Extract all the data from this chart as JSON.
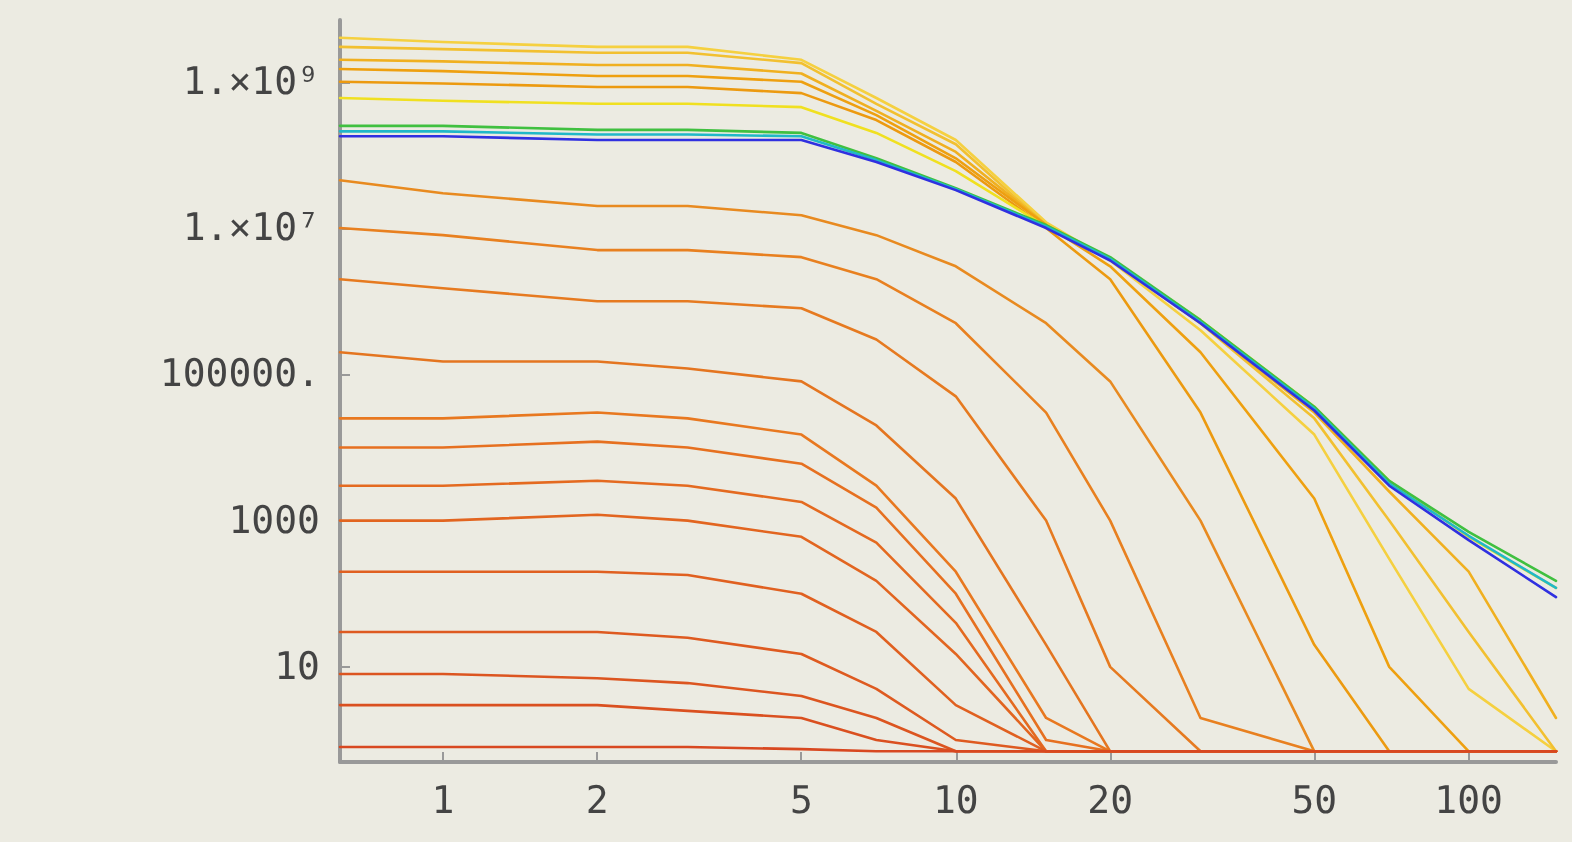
{
  "chart_data": {
    "type": "line",
    "log": "xy",
    "grid": false,
    "marker": "none",
    "line_style": "solid",
    "xlim": [
      0.63,
      148
    ],
    "ylim": [
      0.5,
      7000000000
    ],
    "xticks": [
      1,
      2,
      5,
      10,
      20,
      50,
      100
    ],
    "yticks": [
      10,
      1000,
      {
        "value": 100000,
        "label": "100000."
      },
      {
        "value": 10000000,
        "label": "1.×10⁷"
      },
      {
        "value": 1000000000,
        "label": "1.×10⁹"
      }
    ],
    "x": [
      0.63,
      1,
      2,
      3,
      5,
      7,
      10,
      15,
      20,
      30,
      50,
      70,
      100,
      148
    ],
    "series": [
      {
        "color": "#f5d040",
        "values": [
          4000000000,
          3500000000,
          3000000000,
          3000000000,
          2000000000,
          600000000,
          160000000,
          12000000,
          3600000,
          400000,
          15000,
          300,
          5,
          0.7
        ]
      },
      {
        "color": "#f2c030",
        "values": [
          3000000000,
          2800000000,
          2500000000,
          2500000000,
          1800000000,
          500000000,
          140000000,
          11000000,
          3800000,
          500000,
          25000,
          1000,
          30,
          0.7
        ]
      },
      {
        "color": "#f0b020",
        "values": [
          2000000000,
          1900000000,
          1700000000,
          1700000000,
          1300000000,
          400000000,
          110000000,
          11000000,
          3700000,
          500000,
          30000,
          2500,
          200,
          2
        ]
      },
      {
        "color": "#eea010",
        "values": [
          1500000000,
          1400000000,
          1200000000,
          1200000000,
          1000000000,
          350000000,
          90000000,
          11000000,
          3000000,
          200000,
          2000,
          10,
          0.7,
          0.7
        ]
      },
      {
        "color": "#ec9a10",
        "values": [
          1000000000,
          950000000,
          850000000,
          850000000,
          700000000,
          300000000,
          80000000,
          10000000,
          2000000,
          30000,
          20,
          0.7,
          0.7,
          0.7
        ]
      },
      {
        "color": "#f0e020",
        "values": [
          600000000,
          550000000,
          500000000,
          500000000,
          450000000,
          200000000,
          60000000,
          10500000,
          3800000,
          550000,
          36000,
          3500,
          600,
          120
        ]
      },
      {
        "color": "#40c040",
        "values": [
          250000000,
          250000000,
          220000000,
          220000000,
          200000000,
          90000000,
          35000000,
          11000000,
          4000000,
          550000,
          36000,
          3500,
          700,
          150
        ]
      },
      {
        "color": "#20b8c8",
        "values": [
          210000000,
          210000000,
          190000000,
          190000000,
          180000000,
          85000000,
          34000000,
          10500000,
          3800000,
          520000,
          34000,
          3200,
          620,
          120
        ]
      },
      {
        "color": "#3030e0",
        "values": [
          180000000,
          180000000,
          160000000,
          160000000,
          160000000,
          80000000,
          33000000,
          10000000,
          3600000,
          500000,
          32000,
          3000,
          540,
          90
        ]
      },
      {
        "color": "#e88a20",
        "values": [
          45000000,
          30000000,
          20000000,
          20000000,
          15000000,
          8000000,
          3000000,
          500000,
          80000,
          1000,
          0.7,
          0.7,
          0.7,
          0.7
        ]
      },
      {
        "color": "#e88020",
        "values": [
          10000000,
          8000000,
          5000000,
          5000000,
          4000000,
          2000000,
          500000,
          30000,
          1000,
          2,
          0.7,
          0.7,
          0.7,
          0.7
        ]
      },
      {
        "color": "#e67a20",
        "values": [
          2000000,
          1500000,
          1000000,
          1000000,
          800000,
          300000,
          50000,
          1000,
          10,
          0.7,
          0.7,
          0.7,
          0.7,
          0.7
        ]
      },
      {
        "color": "#e47520",
        "values": [
          200000,
          150000,
          150000,
          120000,
          80000,
          20000,
          2000,
          20,
          0.7,
          0.7,
          0.7,
          0.7,
          0.7,
          0.7
        ]
      },
      {
        "color": "#e87820",
        "values": [
          25000,
          25000,
          30000,
          25000,
          15000,
          3000,
          200,
          2,
          0.7,
          0.7,
          0.7,
          0.7,
          0.7,
          0.7
        ]
      },
      {
        "color": "#e67020",
        "values": [
          10000,
          10000,
          12000,
          10000,
          6000,
          1500,
          100,
          1,
          0.7,
          0.7,
          0.7,
          0.7,
          0.7,
          0.7
        ]
      },
      {
        "color": "#e46a20",
        "values": [
          3000,
          3000,
          3500,
          3000,
          1800,
          500,
          40,
          0.7,
          0.7,
          0.7,
          0.7,
          0.7,
          0.7,
          0.7
        ]
      },
      {
        "color": "#e26520",
        "values": [
          1000,
          1000,
          1200,
          1000,
          600,
          150,
          15,
          0.7,
          0.7,
          0.7,
          0.7,
          0.7,
          0.7,
          0.7
        ]
      },
      {
        "color": "#e06020",
        "values": [
          200,
          200,
          200,
          180,
          100,
          30,
          3,
          0.7,
          0.7,
          0.7,
          0.7,
          0.7,
          0.7,
          0.7
        ]
      },
      {
        "color": "#de5a20",
        "values": [
          30,
          30,
          30,
          25,
          15,
          5,
          1,
          0.7,
          0.7,
          0.7,
          0.7,
          0.7,
          0.7,
          0.7
        ]
      },
      {
        "color": "#dc5520",
        "values": [
          8,
          8,
          7,
          6,
          4,
          2,
          0.7,
          0.7,
          0.7,
          0.7,
          0.7,
          0.7,
          0.7,
          0.7
        ]
      },
      {
        "color": "#da5020",
        "values": [
          3,
          3,
          3,
          2.5,
          2,
          1,
          0.7,
          0.7,
          0.7,
          0.7,
          0.7,
          0.7,
          0.7,
          0.7
        ]
      },
      {
        "color": "#d84820",
        "values": [
          0.8,
          0.8,
          0.8,
          0.8,
          0.75,
          0.7,
          0.7,
          0.7,
          0.7,
          0.7,
          0.7,
          0.7,
          0.7,
          0.7
        ]
      }
    ]
  }
}
